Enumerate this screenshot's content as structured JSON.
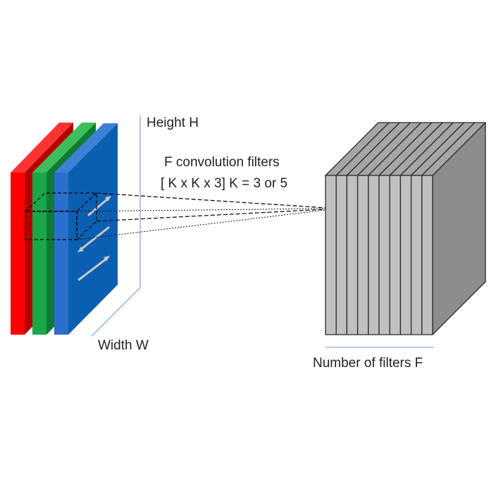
{
  "labels": {
    "height": "Height H",
    "width": "Width W",
    "filters_line1": "F convolution filters",
    "filters_line2": "[ K x K x 3] K = 3 or 5",
    "num_filters": "Number of filters F"
  },
  "input_volume": {
    "channels": [
      {
        "name": "red-channel",
        "front": "#ff0000",
        "top": "#ff3333",
        "side": "#b30000"
      },
      {
        "name": "green-channel",
        "front": "#18a848",
        "top": "#3cbf5a",
        "side": "#0f7a35"
      },
      {
        "name": "blue-channel",
        "front": "#0a5fb3",
        "top": "#3b82d6",
        "side": "#2a6fcc"
      }
    ],
    "arrow_color": "#c8c8c8"
  },
  "filter_bank": {
    "slice_count": 10,
    "front_color": "#c0c0c0",
    "top_color": "#a6a6a6",
    "side_color": "#8c8c8c",
    "edge_color": "#2b2b2b"
  },
  "guide_color": "#8fa8d8"
}
